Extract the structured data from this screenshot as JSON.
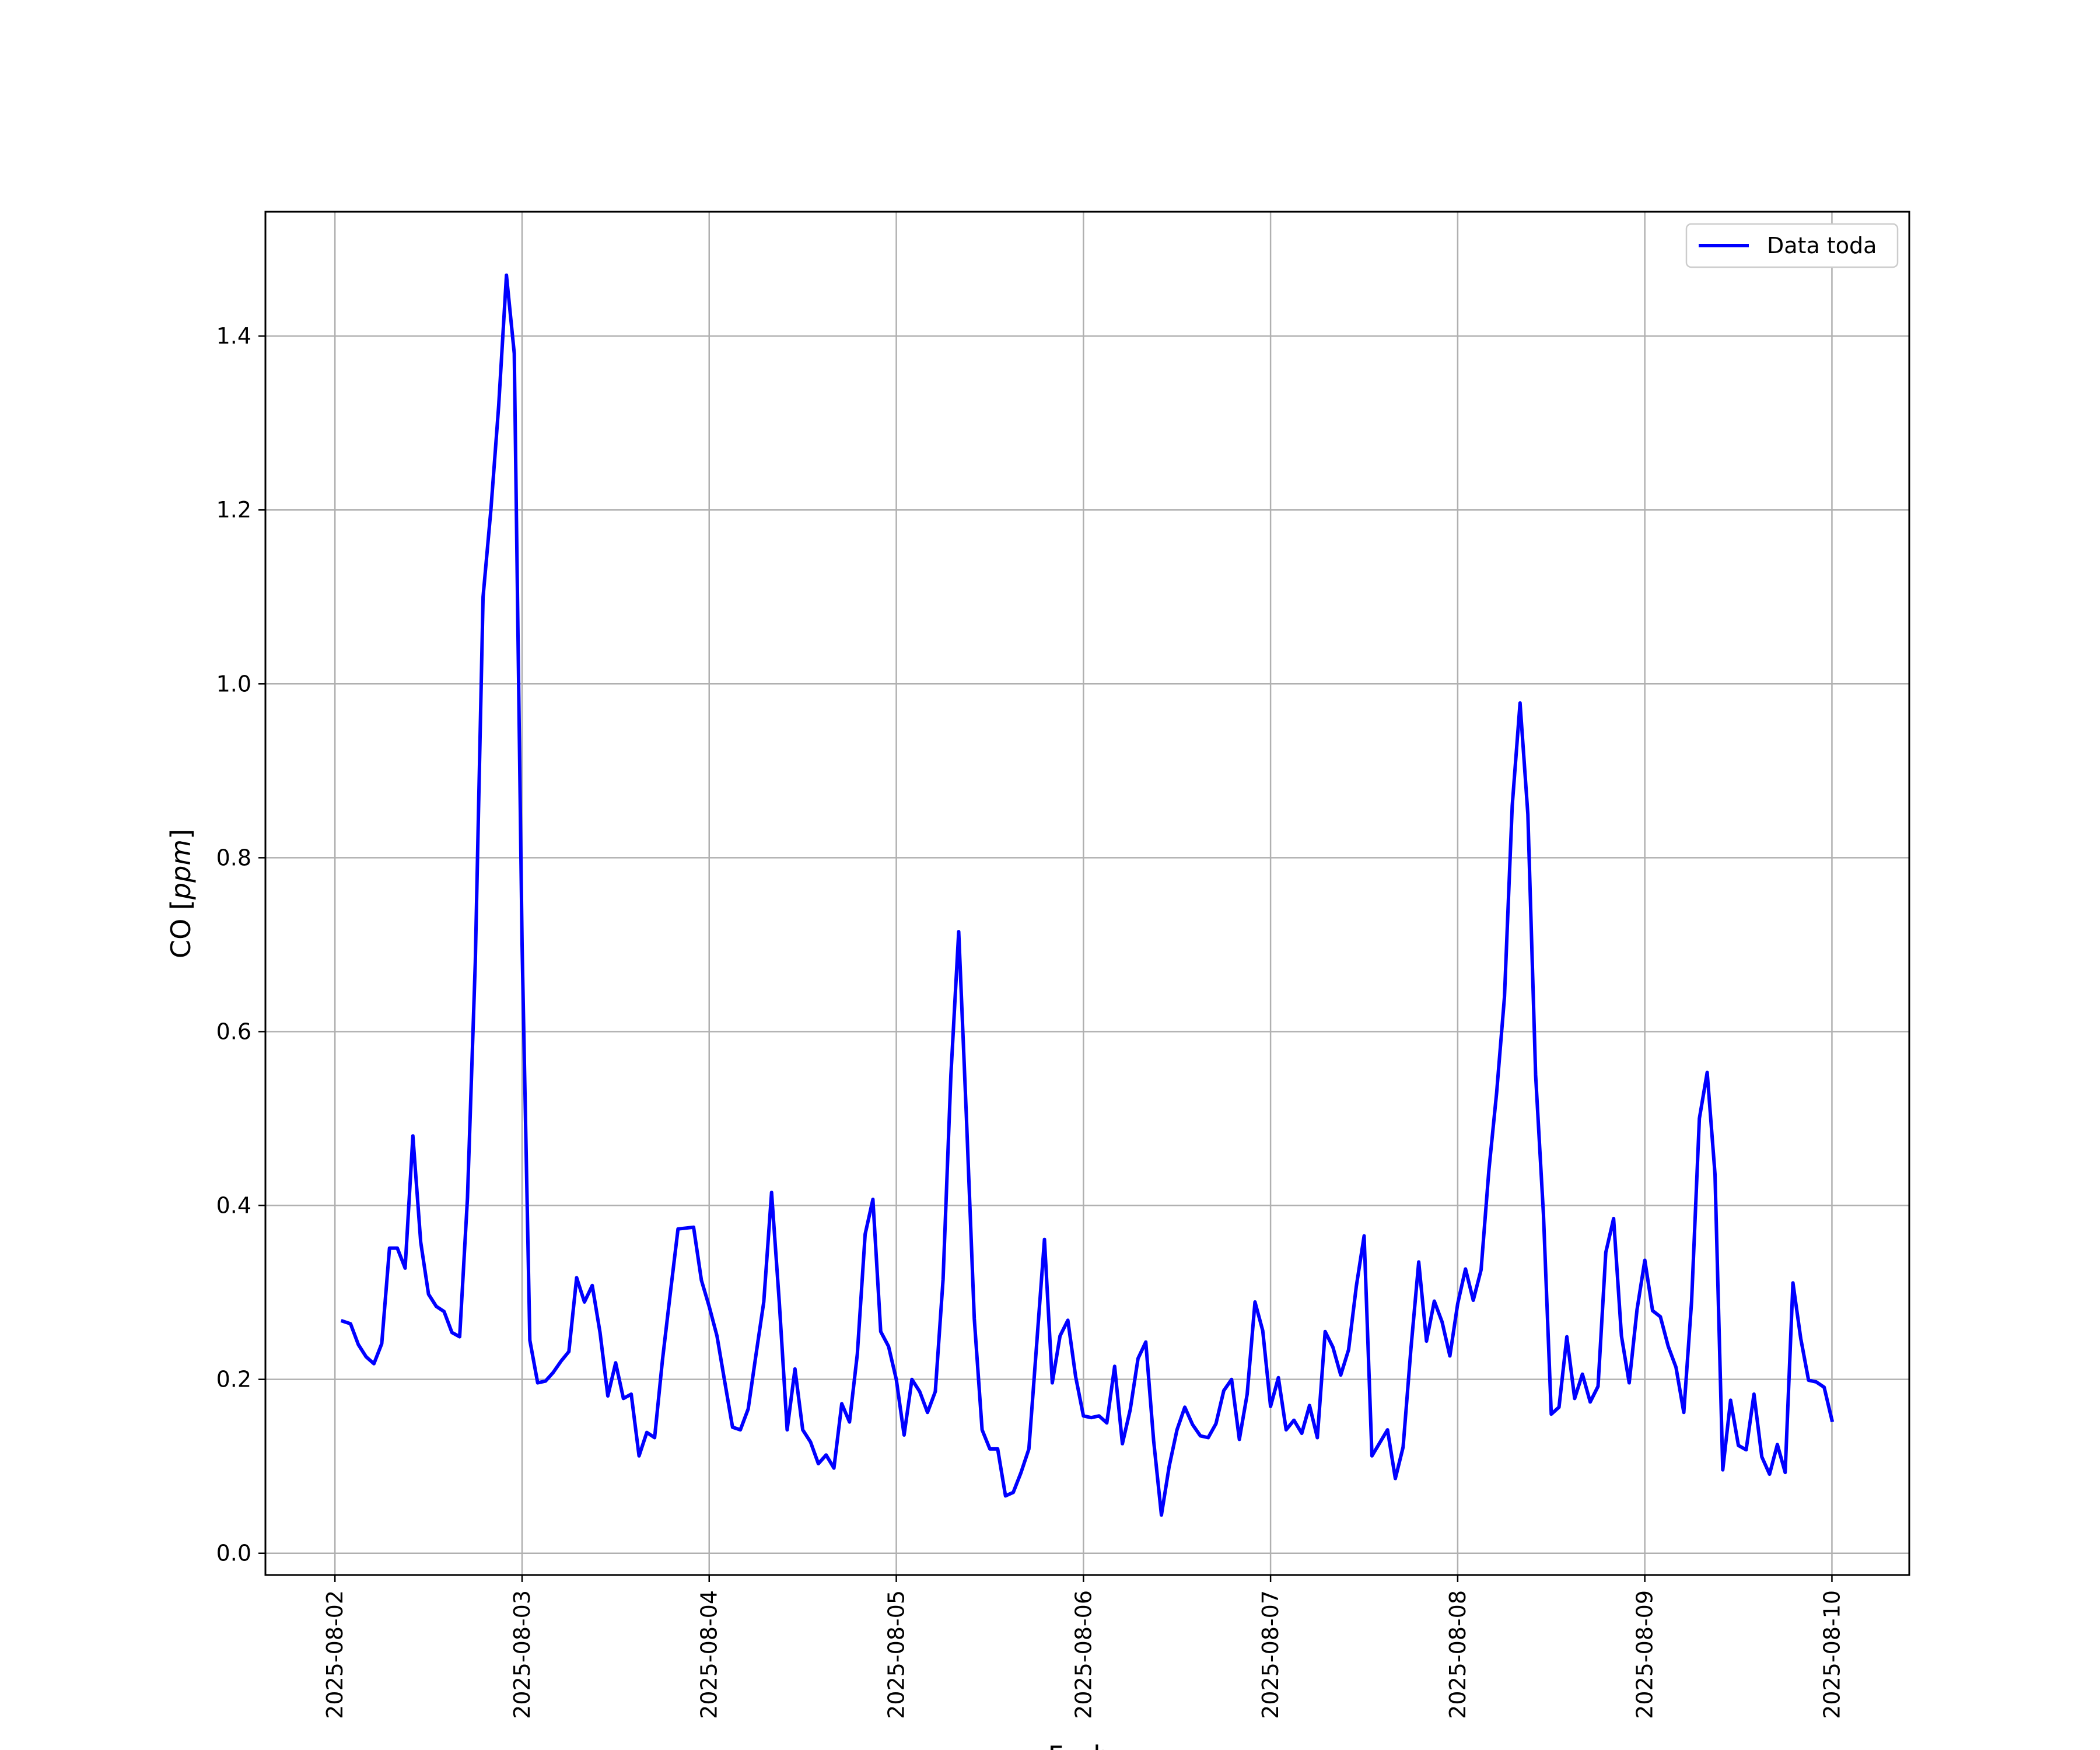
{
  "chart_data": {
    "type": "line",
    "title": "",
    "xlabel": "Fecha",
    "ylabel": "CO [ppm]",
    "ylabel_plain": "CO ",
    "ylabel_italic": "ppm",
    "x_ticks": [
      "2025-08-02",
      "2025-08-03",
      "2025-08-04",
      "2025-08-05",
      "2025-08-06",
      "2025-08-07",
      "2025-08-08",
      "2025-08-09",
      "2025-08-10"
    ],
    "y_ticks": [
      "0.0",
      "0.2",
      "0.4",
      "0.6",
      "0.8",
      "1.0",
      "1.2",
      "1.4"
    ],
    "xlim": [
      "2025-08-01T15:05",
      "2025-08-10T09:55"
    ],
    "ylim": [
      -0.025,
      1.543
    ],
    "grid": true,
    "legend_position": "top-right",
    "series": [
      {
        "name": "Data toda",
        "color": "#0000ff",
        "x_start": "2025-08-02T01:00",
        "x_step_hours": 1,
        "values": [
          0.267,
          0.264,
          0.24,
          0.226,
          0.218,
          0.241,
          0.351,
          0.351,
          0.328,
          0.48,
          0.358,
          0.298,
          0.284,
          0.278,
          0.254,
          0.249,
          0.409,
          0.68,
          1.1,
          1.2,
          1.32,
          1.47,
          1.38,
          0.7,
          0.245,
          0.196,
          0.198,
          0.208,
          0.221,
          0.232,
          0.317,
          0.289,
          0.308,
          0.254,
          0.181,
          0.219,
          0.178,
          0.183,
          0.112,
          0.139,
          0.133,
          0.222,
          0.298,
          0.373,
          0.374,
          0.375,
          0.314,
          0.284,
          0.25,
          0.197,
          0.145,
          0.142,
          0.166,
          0.228,
          0.289,
          0.415,
          0.288,
          0.142,
          0.212,
          0.142,
          0.128,
          0.103,
          0.113,
          0.098,
          0.172,
          0.151,
          0.229,
          0.367,
          0.407,
          0.255,
          0.238,
          0.2,
          0.136,
          0.2,
          0.186,
          0.162,
          0.186,
          0.315,
          0.55,
          0.715,
          0.5,
          0.27,
          0.142,
          0.12,
          0.12,
          0.066,
          0.07,
          0.093,
          0.12,
          0.24,
          0.361,
          0.196,
          0.25,
          0.268,
          0.203,
          0.158,
          0.156,
          0.158,
          0.15,
          0.215,
          0.126,
          0.165,
          0.224,
          0.243,
          0.13,
          0.044,
          0.1,
          0.142,
          0.168,
          0.148,
          0.135,
          0.133,
          0.149,
          0.187,
          0.2,
          0.131,
          0.183,
          0.289,
          0.256,
          0.169,
          0.202,
          0.142,
          0.153,
          0.138,
          0.17,
          0.133,
          0.255,
          0.237,
          0.205,
          0.234,
          0.307,
          0.365,
          0.112,
          0.127,
          0.142,
          0.086,
          0.122,
          0.235,
          0.335,
          0.244,
          0.29,
          0.266,
          0.227,
          0.287,
          0.327,
          0.291,
          0.326,
          0.44,
          0.53,
          0.64,
          0.86,
          0.978,
          0.85,
          0.55,
          0.39,
          0.16,
          0.168,
          0.249,
          0.178,
          0.206,
          0.174,
          0.192,
          0.346,
          0.385,
          0.25,
          0.196,
          0.28,
          0.337,
          0.279,
          0.272,
          0.238,
          0.214,
          0.162,
          0.29,
          0.5,
          0.553,
          0.436,
          0.096,
          0.176,
          0.124,
          0.119,
          0.183,
          0.111,
          0.091,
          0.125,
          0.093,
          0.311,
          0.247,
          0.199,
          0.197,
          0.191,
          0.153
        ]
      }
    ]
  }
}
